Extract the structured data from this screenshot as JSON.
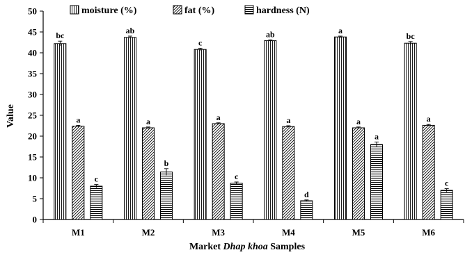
{
  "chart_data": {
    "type": "bar",
    "xlabel_parts": [
      "Market ",
      "Dhap khoa",
      " Samples"
    ],
    "ylabel": "Value",
    "ylim": [
      0,
      50
    ],
    "yticks": [
      0,
      5,
      10,
      15,
      20,
      25,
      30,
      35,
      40,
      45,
      50
    ],
    "grid": false,
    "legend_position": "top",
    "categories": [
      "M1",
      "M2",
      "M3",
      "M4",
      "M5",
      "M6"
    ],
    "series": [
      {
        "name": "moisture (%)",
        "pattern": "vertical-lines",
        "values": [
          42.2,
          43.7,
          40.8,
          42.9,
          43.8,
          42.3
        ],
        "errors": [
          0.6,
          0.3,
          0.3,
          0.2,
          0.2,
          0.4
        ],
        "labels": [
          "bc",
          "ab",
          "c",
          "ab",
          "a",
          "bc"
        ]
      },
      {
        "name": "fat (%)",
        "pattern": "diagonal-lines",
        "values": [
          22.4,
          22.0,
          23.0,
          22.3,
          22.0,
          22.6
        ],
        "errors": [
          0.2,
          0.2,
          0.2,
          0.2,
          0.2,
          0.2
        ],
        "labels": [
          "a",
          "a",
          "a",
          "a",
          "a",
          "a"
        ]
      },
      {
        "name": "hardness (N)",
        "pattern": "horizontal-lines",
        "values": [
          8.0,
          11.4,
          8.7,
          4.5,
          18.0,
          7.0
        ],
        "errors": [
          0.4,
          0.8,
          0.3,
          0.2,
          0.6,
          0.4
        ],
        "labels": [
          "c",
          "b",
          "c",
          "d",
          "a",
          "c"
        ]
      }
    ]
  }
}
